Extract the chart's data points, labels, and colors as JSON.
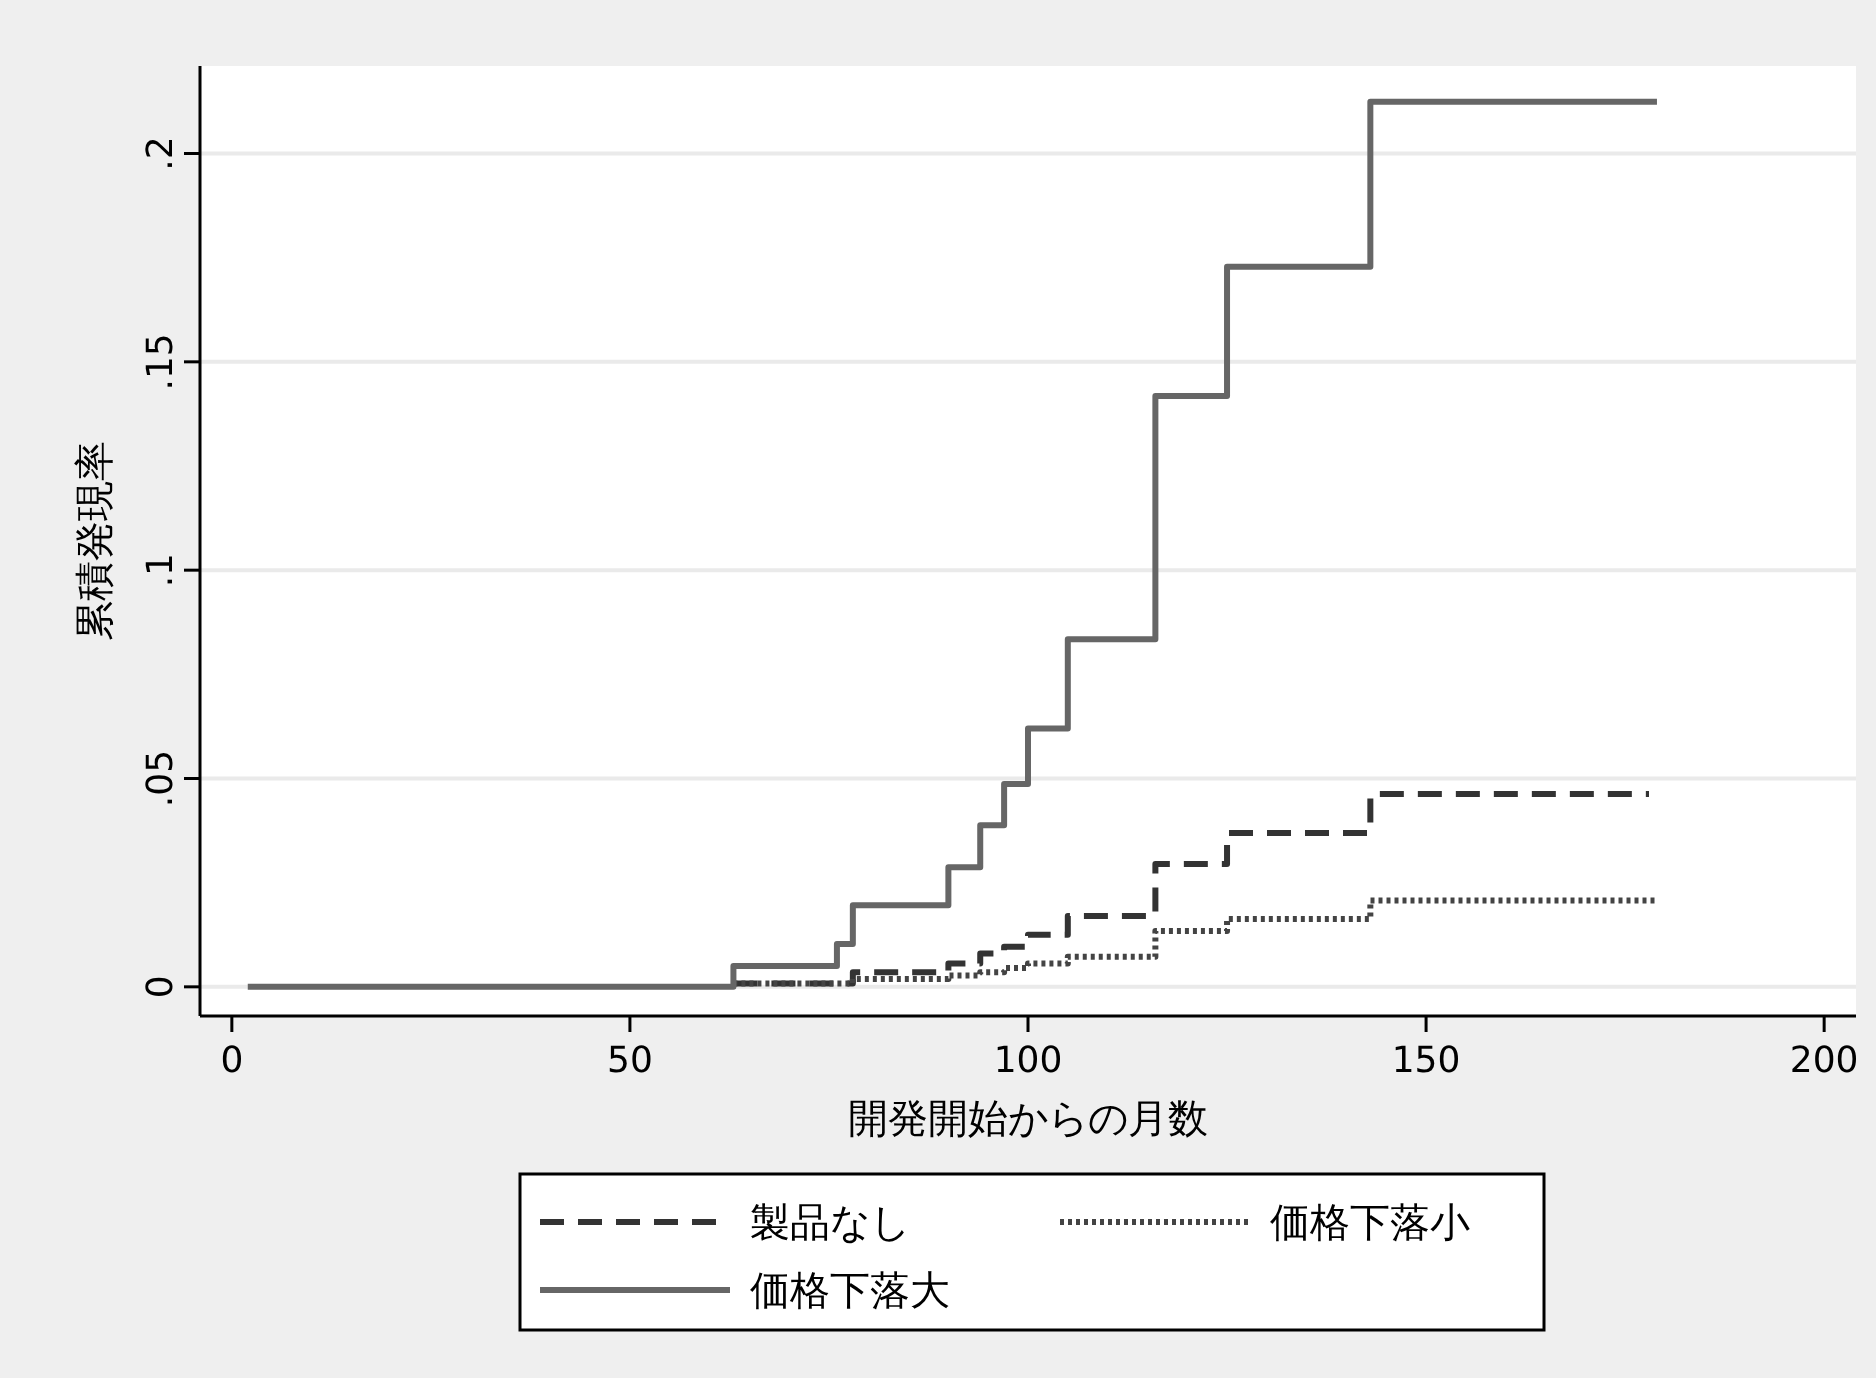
{
  "chart_data": {
    "type": "step",
    "xlabel": "開発開始からの月数",
    "ylabel": "累積発現率",
    "xlim": [
      -4,
      204
    ],
    "ylim": [
      -0.007,
      0.221
    ],
    "xticks": [
      0,
      50,
      100,
      150,
      200
    ],
    "yticks": [
      {
        "value": 0,
        "label": "0"
      },
      {
        "value": 0.05,
        "label": ".05"
      },
      {
        "value": 0.1,
        "label": ".1"
      },
      {
        "value": 0.15,
        "label": ".15"
      },
      {
        "value": 0.2,
        "label": ".2"
      }
    ],
    "grid": "y",
    "legend": "bottom",
    "marker": "none",
    "series": [
      {
        "name": "製品なし",
        "color": "#333333",
        "line_style": "dashed",
        "x": [
          63,
          78,
          90,
          94,
          97,
          100,
          105,
          116,
          125,
          143,
          178
        ],
        "values": [
          0.0008,
          0.0035,
          0.0056,
          0.008,
          0.0096,
          0.0125,
          0.017,
          0.0295,
          0.0369,
          0.0463,
          0.0463
        ]
      },
      {
        "name": "価格下落小",
        "color": "#444444",
        "line_style": "dotted",
        "x": [
          63,
          78,
          90,
          94,
          97,
          100,
          105,
          116,
          125,
          143,
          179
        ],
        "values": [
          0.0008,
          0.0019,
          0.0027,
          0.0035,
          0.0045,
          0.0056,
          0.0072,
          0.0134,
          0.0163,
          0.0207,
          0.0207
        ]
      },
      {
        "name": "価格下落大",
        "color": "#666666",
        "line_style": "solid",
        "x": [
          2,
          63,
          76,
          78,
          90,
          94,
          97,
          100,
          105,
          116,
          125,
          143,
          179
        ],
        "values": [
          0,
          0.005,
          0.0103,
          0.0196,
          0.0287,
          0.0388,
          0.0487,
          0.062,
          0.0834,
          0.1418,
          0.1728,
          0.2124,
          0.2124
        ]
      }
    ]
  }
}
